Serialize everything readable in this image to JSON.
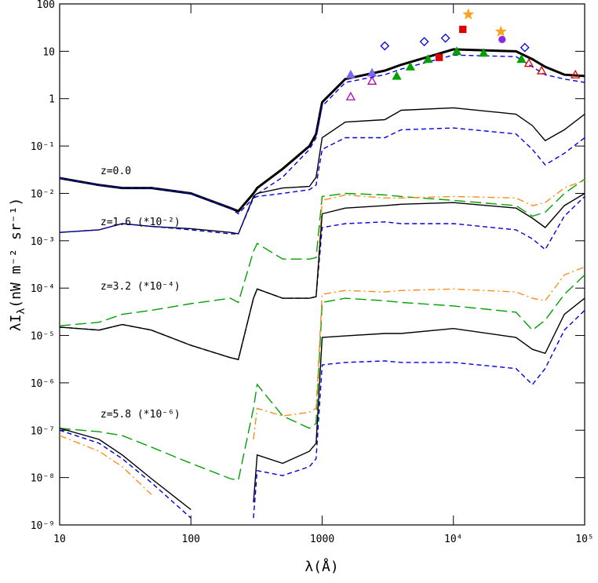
{
  "chart_data": {
    "type": "line",
    "xlabel": "λ(Å)",
    "ylabel": {
      "main": "λI",
      "sub": "λ",
      "rest": "(nW m⁻² sr⁻¹)"
    },
    "xlog": true,
    "ylog": true,
    "xlim": [
      10,
      100000
    ],
    "ylim": [
      1e-09,
      100
    ],
    "xticks": [
      10,
      100,
      1000,
      {
        "value": 10000,
        "label": "10⁴"
      },
      {
        "value": 100000,
        "label": "10⁵"
      }
    ],
    "yticks": [
      {
        "value": 1e-09,
        "label": "10⁻⁹"
      },
      {
        "value": 1e-08,
        "label": "10⁻⁸"
      },
      {
        "value": 1e-07,
        "label": "10⁻⁷"
      },
      {
        "value": 1e-06,
        "label": "10⁻⁶"
      },
      {
        "value": 1e-05,
        "label": "10⁻⁵"
      },
      {
        "value": 0.0001,
        "label": "10⁻⁴"
      },
      {
        "value": 0.001,
        "label": "10⁻³"
      },
      {
        "value": 0.01,
        "label": "10⁻²"
      },
      {
        "value": 0.1,
        "label": "10⁻¹"
      },
      1,
      10,
      100
    ],
    "annotations": [
      "z=0.0",
      "z=1.6 (*10⁻²)",
      "z=3.2 (*10⁻⁴)",
      "z=5.8 (*10⁻⁶)"
    ],
    "x": [
      10,
      20,
      30,
      50,
      100,
      200,
      230,
      300,
      320,
      500,
      800,
      900,
      1000,
      1500,
      3000,
      4000,
      10000,
      30000,
      40000,
      50000,
      70000,
      100000
    ],
    "series": [
      {
        "color": "#000000",
        "dash": "thick",
        "values": [
          0.021,
          0.015,
          0.013,
          0.013,
          0.01,
          0.0049,
          0.0042,
          0.01,
          0.013,
          0.033,
          0.1,
          0.18,
          0.84,
          2.6,
          3.9,
          5.2,
          11,
          10,
          6.8,
          4.7,
          3.2,
          3.0
        ]
      },
      {
        "color": "#0000dd",
        "dash": "dashed",
        "values": [
          0.021,
          0.015,
          0.013,
          0.013,
          0.01,
          0.0049,
          0.0037,
          0.008,
          0.0097,
          0.022,
          0.085,
          0.15,
          0.69,
          2.2,
          3.2,
          4.2,
          8.3,
          7.7,
          4.7,
          3.2,
          2.6,
          2.2
        ]
      },
      {
        "color": "#000000",
        "dash": "solid",
        "values": [
          0.0015,
          0.0017,
          0.0023,
          0.002,
          0.0018,
          0.0015,
          0.0014,
          0.0086,
          0.01,
          0.013,
          0.014,
          0.022,
          0.15,
          0.32,
          0.36,
          0.57,
          0.64,
          0.47,
          0.27,
          0.13,
          0.22,
          0.47
        ]
      },
      {
        "color": "#0000dd",
        "dash": "dashed",
        "values": [
          0.0015,
          0.0017,
          0.0023,
          0.002,
          0.0017,
          0.0014,
          0.0014,
          0.008,
          0.0086,
          0.01,
          0.012,
          0.015,
          0.085,
          0.15,
          0.15,
          0.22,
          0.24,
          0.18,
          0.085,
          0.04,
          0.07,
          0.15
        ]
      },
      {
        "color": "#00a000",
        "dash": "long-dash",
        "values": [
          1.6e-05,
          1.9e-05,
          2.8e-05,
          3.4e-05,
          4.7e-05,
          6.1e-05,
          5e-05,
          0.0006,
          0.00088,
          0.00041,
          0.00041,
          0.00044,
          0.0086,
          0.01,
          0.0093,
          0.0086,
          0.0071,
          0.0055,
          0.0033,
          0.004,
          0.01,
          0.02
        ]
      },
      {
        "color": "#ff8c1a",
        "dash": "dash-dot",
        "values": [
          1.5e-05,
          1.3e-05,
          1.7e-05,
          1.3e-05,
          6.2e-06,
          3.4e-06,
          3.1e-06,
          6.1e-05,
          9.6e-05,
          6.1e-05,
          6.1e-05,
          6.6e-05,
          0.0071,
          0.0093,
          0.008,
          0.008,
          0.0086,
          0.008,
          0.0055,
          0.0064,
          0.013,
          0.019
        ]
      },
      {
        "color": "#0000dd",
        "dash": "dashed",
        "values": [
          1.5e-05,
          1.3e-05,
          1.7e-05,
          1.3e-05,
          6.2e-06,
          3.4e-06,
          3.1e-06,
          6.1e-05,
          9.6e-05,
          6.1e-05,
          6.1e-05,
          6.6e-05,
          0.0019,
          0.0023,
          0.0025,
          0.0023,
          0.0023,
          0.0017,
          0.0011,
          0.00065,
          0.0033,
          0.0086
        ]
      },
      {
        "color": "#000000",
        "dash": "solid",
        "values": [
          1.5e-05,
          1.3e-05,
          1.7e-05,
          1.3e-05,
          6.2e-06,
          3.4e-06,
          3.1e-06,
          6.1e-05,
          9.6e-05,
          6.1e-05,
          6.1e-05,
          6.6e-05,
          0.0037,
          0.0049,
          0.0055,
          0.0059,
          0.0064,
          0.0049,
          0.003,
          0.0019,
          0.0055,
          0.01
        ]
      },
      {
        "color": "#00a000",
        "dash": "long-dash",
        "values": [
          1.1e-07,
          9.3e-08,
          7.7e-08,
          4.4e-08,
          2e-08,
          9.5e-09,
          8.8e-09,
          2.9e-07,
          9.2e-07,
          2e-07,
          1.1e-07,
          1.4e-07,
          5e-05,
          6.1e-05,
          5.4e-05,
          5e-05,
          4.2e-05,
          3.1e-05,
          1.3e-05,
          2.1e-05,
          7.4e-05,
          0.00019
        ]
      },
      {
        "color": "#ff8c1a",
        "dash": "dash-dot",
        "values": [
          7.7e-08,
          3.6e-08,
          1.7e-08,
          4.4e-09,
          null,
          null,
          null,
          6.4e-08,
          2.9e-07,
          2e-07,
          2.4e-07,
          2.9e-07,
          7.4e-05,
          8.9e-05,
          8.3e-05,
          8.9e-05,
          9.6e-05,
          8.3e-05,
          6.1e-05,
          5.4e-05,
          0.00019,
          0.00028
        ]
      },
      {
        "color": "#0000dd",
        "dash": "dashed",
        "values": [
          1e-07,
          5.3e-08,
          2.5e-08,
          7.8e-09,
          1.4e-09,
          null,
          null,
          1.4e-09,
          1.4e-08,
          1.1e-08,
          1.7e-08,
          2.5e-08,
          2.4e-06,
          2.7e-06,
          2.9e-06,
          2.7e-06,
          2.7e-06,
          2e-06,
          9.2e-07,
          2e-06,
          1.3e-05,
          3.4e-05
        ]
      },
      {
        "color": "#000000",
        "dash": "solid",
        "values": [
          1.1e-07,
          6.4e-08,
          3e-08,
          9.5e-09,
          2.1e-09,
          null,
          null,
          3e-09,
          3e-08,
          2e-08,
          3.6e-08,
          5.3e-08,
          9.1e-06,
          9.8e-06,
          1.1e-05,
          1.1e-05,
          1.4e-05,
          9.1e-06,
          5.1e-06,
          4.2e-06,
          2.8e-05,
          6.1e-05
        ]
      }
    ],
    "points": [
      {
        "marker": "diamond-open",
        "color": "#0000dd",
        "x": [
          3000,
          6000,
          8700,
          35000
        ],
        "values": [
          13,
          16,
          19,
          12
        ]
      },
      {
        "marker": "triangle",
        "color": "#7b68ee",
        "x": [
          1650,
          2400
        ],
        "values": [
          3.2,
          3.5
        ]
      },
      {
        "marker": "triangle-open",
        "color": "#b000b0",
        "x": [
          1650,
          2400
        ],
        "values": [
          1.1,
          2.35
        ]
      },
      {
        "marker": "triangle",
        "color": "#00a000",
        "x": [
          3700,
          4700,
          6400,
          10600,
          17000,
          33000
        ],
        "values": [
          3.0,
          4.7,
          6.8,
          9.9,
          9.2,
          6.8
        ]
      },
      {
        "marker": "square",
        "color": "#dd0000",
        "x": [
          7800,
          11800
        ],
        "values": [
          7.4,
          29
        ]
      },
      {
        "marker": "triangle-open",
        "color": "#dd0000",
        "x": [
          37600,
          47000,
          85000
        ],
        "values": [
          5.6,
          3.9,
          3.2
        ]
      },
      {
        "marker": "star",
        "color": "#ffa020",
        "x": [
          13000,
          23000
        ],
        "values": [
          60,
          26
        ]
      },
      {
        "marker": "circle",
        "color": "#8a2be2",
        "x": [
          23500
        ],
        "values": [
          17.7
        ]
      }
    ]
  }
}
